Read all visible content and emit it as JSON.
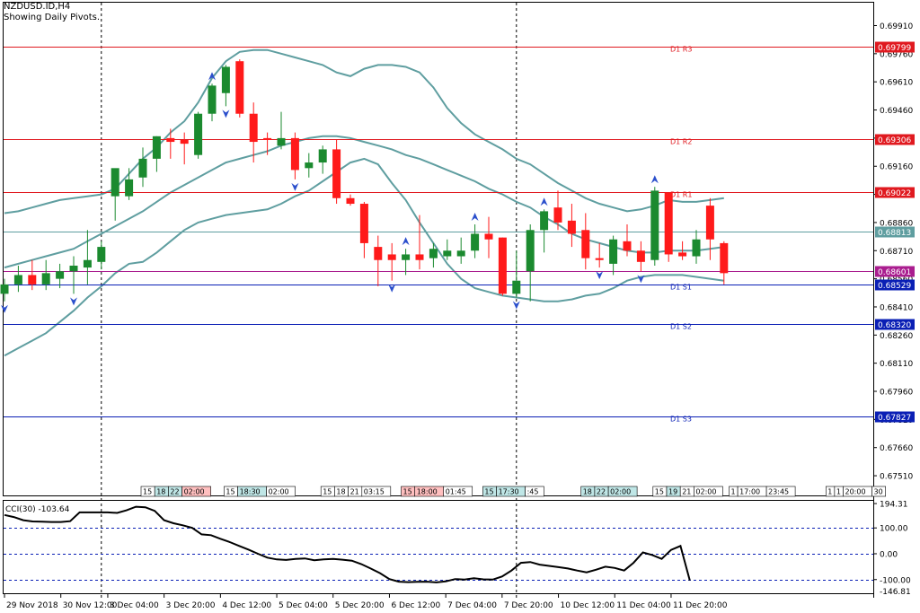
{
  "header": {
    "symbol": "NZDUSD.ID,H4",
    "subtitle": "Showing Daily Pivots."
  },
  "colors": {
    "bull": "#1b8a2f",
    "bear": "#ff1a1a",
    "band": "#5f9ea0",
    "resistance": "#e0191f",
    "support": "#0a1fb5",
    "pivot": "#5f9ea0",
    "current": "#aa1d8f",
    "grid": "#000000",
    "fractal": "#2b4fcc"
  },
  "chart_data": [
    {
      "type": "candlestick",
      "ylim": [
        0.67405,
        0.70032
      ],
      "y_ticks": [
        0.6991,
        0.6976,
        0.6961,
        0.6946,
        0.6931,
        0.6916,
        0.6901,
        0.6886,
        0.6871,
        0.6856,
        0.6841,
        0.6826,
        0.6811,
        0.6796,
        0.6781,
        0.6766,
        0.6751
      ],
      "y_tick_labels": [
        "0.69910",
        "0.69760",
        "0.69610",
        "0.69460",
        "0.69310",
        "0.69160",
        "0.69010",
        "0.68860",
        "0.68710",
        "0.68560",
        "0.68410",
        "0.68260",
        "0.68110",
        "0.67960",
        "0.67810",
        "0.67660",
        "0.67510"
      ],
      "candles": [
        [
          0.6848,
          0.6856,
          0.6844,
          0.6853
        ],
        [
          0.6853,
          0.6863,
          0.6849,
          0.6858
        ],
        [
          0.6858,
          0.6866,
          0.685,
          0.6853
        ],
        [
          0.6853,
          0.6866,
          0.685,
          0.6859
        ],
        [
          0.6856,
          0.6864,
          0.6851,
          0.686
        ],
        [
          0.686,
          0.6868,
          0.6848,
          0.6863
        ],
        [
          0.6862,
          0.6882,
          0.6853,
          0.6866
        ],
        [
          0.6865,
          0.6876,
          0.6861,
          0.6873
        ],
        [
          0.69,
          0.6914,
          0.6887,
          0.6915
        ],
        [
          0.69,
          0.6915,
          0.6898,
          0.6909
        ],
        [
          0.691,
          0.6926,
          0.6905,
          0.692
        ],
        [
          0.692,
          0.6932,
          0.6913,
          0.6932
        ],
        [
          0.6931,
          0.6936,
          0.692,
          0.6929
        ],
        [
          0.693,
          0.6934,
          0.6917,
          0.6928
        ],
        [
          0.6922,
          0.6945,
          0.692,
          0.6944
        ],
        [
          0.6944,
          0.696,
          0.694,
          0.6959
        ],
        [
          0.6955,
          0.697,
          0.6948,
          0.6969
        ],
        [
          0.6972,
          0.6973,
          0.6942,
          0.6944
        ],
        [
          0.6944,
          0.695,
          0.6918,
          0.6929
        ],
        [
          0.6931,
          0.6934,
          0.6922,
          0.693
        ],
        [
          0.6927,
          0.6945,
          0.6925,
          0.6931
        ],
        [
          0.6931,
          0.6934,
          0.6909,
          0.6914
        ],
        [
          0.6915,
          0.6923,
          0.691,
          0.6918
        ],
        [
          0.6918,
          0.6927,
          0.6912,
          0.6925
        ],
        [
          0.6925,
          0.693,
          0.6896,
          0.6899
        ],
        [
          0.6899,
          0.6901,
          0.6895,
          0.6896
        ],
        [
          0.6896,
          0.6897,
          0.6867,
          0.6875
        ],
        [
          0.6873,
          0.6879,
          0.6852,
          0.6866
        ],
        [
          0.6869,
          0.6875,
          0.6855,
          0.6866
        ],
        [
          0.6866,
          0.6872,
          0.6858,
          0.6869
        ],
        [
          0.6869,
          0.689,
          0.6861,
          0.6866
        ],
        [
          0.6867,
          0.6875,
          0.6862,
          0.6872
        ],
        [
          0.6868,
          0.6877,
          0.6866,
          0.6871
        ],
        [
          0.6868,
          0.6878,
          0.6864,
          0.6871
        ],
        [
          0.6871,
          0.6885,
          0.6867,
          0.688
        ],
        [
          0.688,
          0.6889,
          0.6867,
          0.6877
        ],
        [
          0.6878,
          0.6878,
          0.6847,
          0.6848
        ],
        [
          0.6848,
          0.6871,
          0.6846,
          0.6855
        ],
        [
          0.686,
          0.6885,
          0.6844,
          0.6882
        ],
        [
          0.6882,
          0.6893,
          0.687,
          0.6892
        ],
        [
          0.6894,
          0.6903,
          0.6882,
          0.6886
        ],
        [
          0.6887,
          0.6896,
          0.6873,
          0.688
        ],
        [
          0.6882,
          0.6891,
          0.6861,
          0.6867
        ],
        [
          0.6867,
          0.6875,
          0.6862,
          0.6866
        ],
        [
          0.6864,
          0.6879,
          0.6858,
          0.6877
        ],
        [
          0.6876,
          0.6885,
          0.6868,
          0.6871
        ],
        [
          0.6871,
          0.6876,
          0.686,
          0.6865
        ],
        [
          0.6866,
          0.6905,
          0.6863,
          0.6903
        ],
        [
          0.6902,
          0.6902,
          0.6865,
          0.6869
        ],
        [
          0.687,
          0.6876,
          0.6866,
          0.6868
        ],
        [
          0.6868,
          0.6882,
          0.6864,
          0.6877
        ],
        [
          0.6895,
          0.6899,
          0.6866,
          0.6877
        ],
        [
          0.6875,
          0.6876,
          0.6853,
          0.6859
        ]
      ],
      "bollinger_upper": [
        0.6891,
        0.6892,
        0.6894,
        0.6896,
        0.6898,
        0.6899,
        0.69,
        0.6901,
        0.6904,
        0.6912,
        0.692,
        0.6926,
        0.6934,
        0.694,
        0.695,
        0.6963,
        0.6972,
        0.6977,
        0.6978,
        0.6978,
        0.6976,
        0.6974,
        0.6972,
        0.697,
        0.6966,
        0.6964,
        0.6968,
        0.697,
        0.697,
        0.6969,
        0.6966,
        0.6958,
        0.6947,
        0.6939,
        0.6933,
        0.6929,
        0.6925,
        0.692,
        0.6917,
        0.6912,
        0.6907,
        0.6903,
        0.6899,
        0.6896,
        0.6894,
        0.6892,
        0.6893,
        0.6895,
        0.6898,
        0.6897,
        0.6897,
        0.6898,
        0.6899
      ],
      "bollinger_middle": [
        0.6862,
        0.6864,
        0.6866,
        0.6868,
        0.687,
        0.6872,
        0.6876,
        0.688,
        0.6884,
        0.6888,
        0.6892,
        0.6897,
        0.6902,
        0.6906,
        0.691,
        0.6914,
        0.6918,
        0.692,
        0.6922,
        0.6924,
        0.6927,
        0.6929,
        0.6931,
        0.6932,
        0.6932,
        0.6931,
        0.6929,
        0.6927,
        0.6925,
        0.6922,
        0.692,
        0.6917,
        0.6914,
        0.6911,
        0.6908,
        0.6904,
        0.6901,
        0.6897,
        0.6894,
        0.6889,
        0.6885,
        0.688,
        0.6877,
        0.6875,
        0.6873,
        0.6871,
        0.687,
        0.687,
        0.6871,
        0.6871,
        0.6871,
        0.6872,
        0.6873
      ],
      "bollinger_lower": [
        0.6815,
        0.6819,
        0.6823,
        0.6827,
        0.6833,
        0.6839,
        0.6846,
        0.6852,
        0.6859,
        0.6864,
        0.6865,
        0.687,
        0.6876,
        0.6882,
        0.6886,
        0.6888,
        0.689,
        0.6891,
        0.6892,
        0.6893,
        0.6896,
        0.69,
        0.6903,
        0.6908,
        0.6913,
        0.6918,
        0.692,
        0.6917,
        0.6907,
        0.6898,
        0.6886,
        0.6875,
        0.6864,
        0.6856,
        0.6851,
        0.6849,
        0.6847,
        0.6846,
        0.6845,
        0.6844,
        0.6844,
        0.6845,
        0.6847,
        0.6848,
        0.6851,
        0.6855,
        0.6857,
        0.6858,
        0.6858,
        0.6858,
        0.6857,
        0.6856,
        0.6855
      ],
      "horizontal_lines": [
        {
          "label": "D1 R3",
          "value": 0.69799,
          "value_label": "0.69799",
          "kind": "resistance"
        },
        {
          "label": "D1 R2",
          "value": 0.69306,
          "value_label": "0.69306",
          "kind": "resistance"
        },
        {
          "label": "D1 R1",
          "value": 0.69022,
          "value_label": "0.69022",
          "kind": "resistance"
        },
        {
          "label": "",
          "value": 0.68813,
          "value_label": "0.68813",
          "kind": "pivot"
        },
        {
          "label": "",
          "value": 0.68601,
          "value_label": "0.68601",
          "kind": "current"
        },
        {
          "label": "D1 S1",
          "value": 0.68529,
          "value_label": "0.68529",
          "kind": "support"
        },
        {
          "label": "D1 S2",
          "value": 0.6832,
          "value_label": "0.68320",
          "kind": "support"
        },
        {
          "label": "D1 S3",
          "value": 0.67827,
          "value_label": "0.67827",
          "kind": "support"
        }
      ],
      "fractals_up": [
        15,
        29,
        34,
        39,
        47
      ],
      "fractals_down": [
        0,
        5,
        16,
        21,
        28,
        37,
        43,
        46
      ],
      "vertical_markers": [
        7,
        37
      ],
      "session_labels": [
        {
          "at": 10,
          "parts": [
            "15",
            "18",
            "22",
            "02:00"
          ],
          "colors": [
            "w",
            "c",
            "c",
            "r"
          ]
        },
        {
          "at": 16,
          "parts": [
            "15",
            "18:30",
            "02:00"
          ],
          "colors": [
            "w",
            "c",
            "w"
          ]
        },
        {
          "at": 23,
          "parts": [
            "15",
            "18",
            "21",
            "03:15"
          ],
          "colors": [
            "w",
            "w",
            "w",
            "w"
          ]
        },
        {
          "at": 28.8,
          "parts": [
            "15",
            "18:00",
            "01:45"
          ],
          "colors": [
            "r",
            "r",
            "w"
          ]
        },
        {
          "at": 34.7,
          "parts": [
            "15",
            "17:30",
            ":45"
          ],
          "colors": [
            "c",
            "c",
            "w"
          ]
        },
        {
          "at": 41.8,
          "parts": [
            "18",
            "22",
            "02:00"
          ],
          "colors": [
            "c",
            "c",
            "c"
          ]
        },
        {
          "at": 47,
          "parts": [
            "15",
            "19",
            "21",
            "02:00"
          ],
          "colors": [
            "w",
            "c",
            "w",
            "w"
          ]
        },
        {
          "at": 52.5,
          "parts": [
            "1",
            "17:00",
            "23:45"
          ],
          "colors": [
            "w",
            "w",
            "w"
          ]
        },
        {
          "at": 59.5,
          "parts": [
            "1",
            "1",
            "20:00",
            "30"
          ],
          "colors": [
            "w",
            "w",
            "w",
            "w"
          ]
        }
      ]
    },
    {
      "type": "line",
      "name": "CCI(30) -103.64",
      "ylim": [
        -153,
        205
      ],
      "y_ticks": [
        194.31,
        100.0,
        0.0,
        -100.0
      ],
      "y_tick_labels": [
        "194.31",
        "100.00",
        "0.00",
        "-100.00"
      ],
      "extra_label": "-146.81",
      "levels": [
        100,
        0,
        -100
      ],
      "values": [
        150,
        142,
        130,
        125,
        124,
        123,
        123,
        126,
        160,
        160,
        160,
        160,
        158,
        168,
        182,
        180,
        166,
        130,
        118,
        110,
        100,
        75,
        72,
        58,
        45,
        30,
        16,
        0,
        -15,
        -22,
        -24,
        -20,
        -18,
        -25,
        -22,
        -20,
        -23,
        -27,
        -40,
        -57,
        -75,
        -98,
        -108,
        -110,
        -109,
        -108,
        -111,
        -107,
        -98,
        -100,
        -95,
        -99,
        -100,
        -88,
        -65,
        -35,
        -32,
        -42,
        -47,
        -52,
        -57,
        -65,
        -72,
        -62,
        -50,
        -55,
        -65,
        -35,
        5,
        -5,
        -20,
        15,
        30,
        -103.64
      ],
      "x_labels": [
        {
          "at": 0,
          "label": "29 Nov 2018"
        },
        {
          "at": 6,
          "label": "30 Nov 12:00"
        },
        {
          "at": 11,
          "label": "3 Dec 04:00"
        },
        {
          "at": 17,
          "label": "3 Dec 20:00"
        },
        {
          "at": 23,
          "label": "4 Dec 12:00"
        },
        {
          "at": 29,
          "label": "5 Dec 04:00"
        },
        {
          "at": 35,
          "label": "5 Dec 20:00"
        },
        {
          "at": 41,
          "label": "6 Dec 12:00"
        },
        {
          "at": 47,
          "label": "7 Dec 04:00"
        },
        {
          "at": 53,
          "label": "7 Dec 20:00"
        },
        {
          "at": 59,
          "label": "10 Dec 12:00"
        },
        {
          "at": 65,
          "label": "11 Dec 04:00"
        },
        {
          "at": 71,
          "label": "11 Dec 20:00"
        }
      ]
    }
  ]
}
